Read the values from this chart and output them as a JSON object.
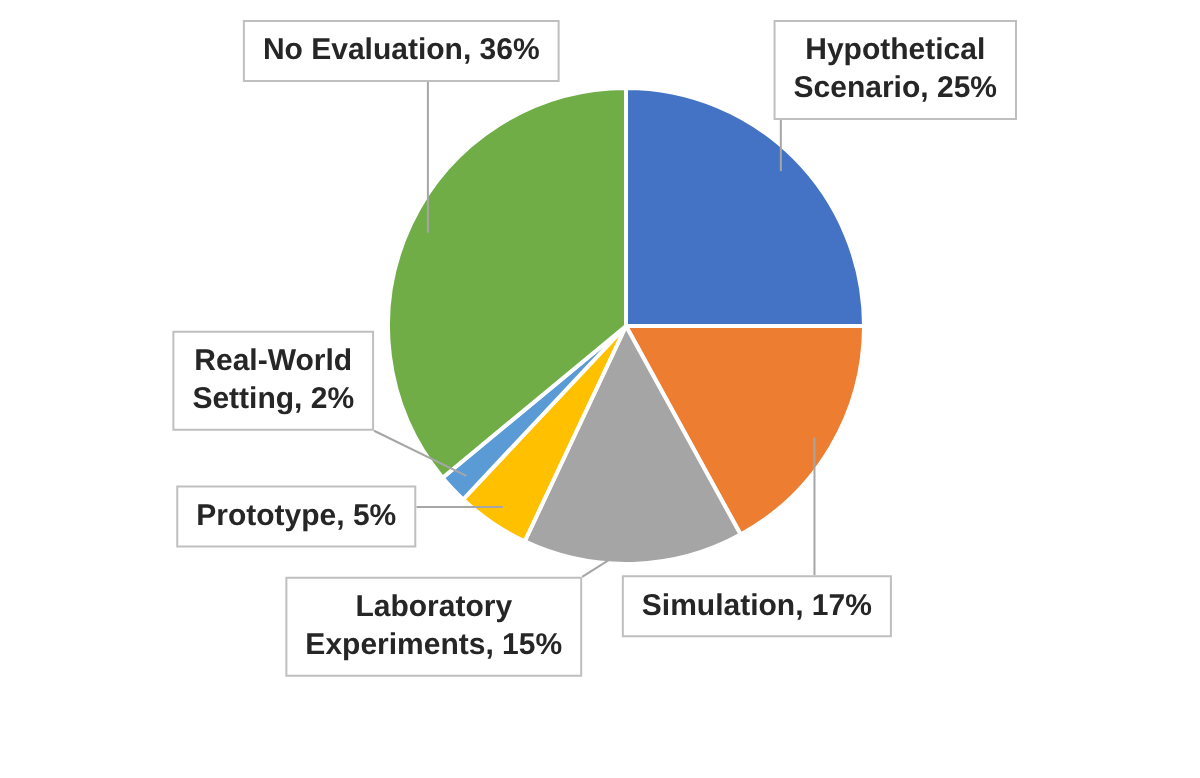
{
  "chart_data": {
    "type": "pie",
    "categories": [
      "Hypothetical Scenario",
      "Simulation",
      "Laboratory Experiments",
      "Prototype",
      "Real-World Setting",
      "No Evaluation"
    ],
    "values": [
      25,
      17,
      15,
      5,
      2,
      36
    ],
    "colors": [
      "#4472c4",
      "#ed7d31",
      "#a5a5a5",
      "#ffc000",
      "#5b9bd5",
      "#70ad47"
    ],
    "value_labels": [
      "25%",
      "17%",
      "15%",
      "5%",
      "2%",
      "36%"
    ],
    "legend": false
  }
}
